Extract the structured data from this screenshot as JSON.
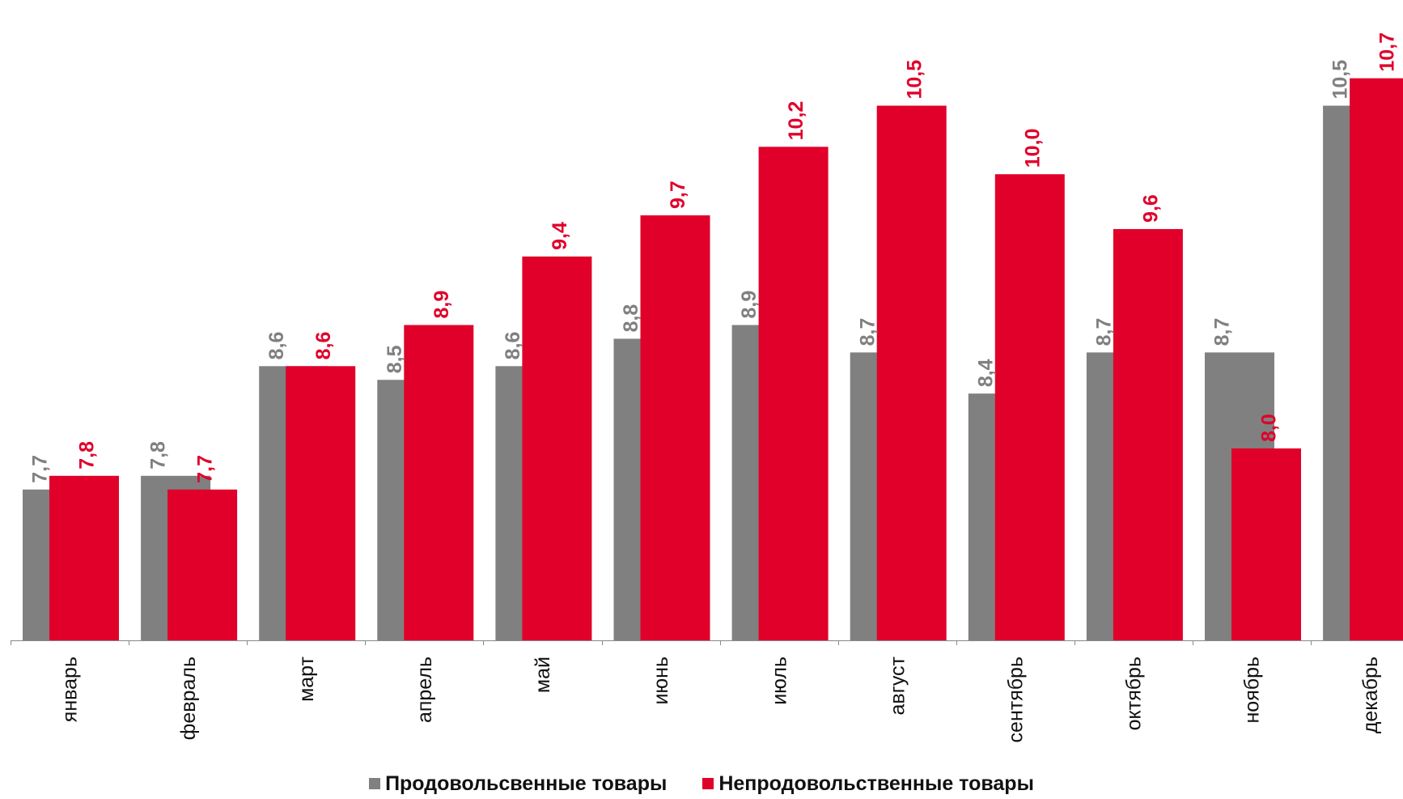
{
  "chart_data": {
    "type": "bar",
    "categories": [
      "январь",
      "февраль",
      "март",
      "апрель",
      "май",
      "июнь",
      "июль",
      "август",
      "сентябрь",
      "октябрь",
      "ноябрь",
      "декабрь"
    ],
    "series": [
      {
        "name": "Продовольсвенные товары",
        "color": "#808080",
        "label_color": "#808080",
        "values": [
          7.7,
          7.8,
          8.6,
          8.5,
          8.6,
          8.8,
          8.9,
          8.7,
          8.4,
          8.7,
          8.7,
          10.5
        ]
      },
      {
        "name": "Непродовольственные товары",
        "color": "#E0002A",
        "label_color": "#E0002A",
        "values": [
          7.8,
          7.7,
          8.6,
          8.9,
          9.4,
          9.7,
          10.2,
          10.5,
          10.0,
          9.6,
          8.0,
          10.7
        ]
      }
    ],
    "data_labels": [
      [
        "7,7",
        "7,8",
        "8,6",
        "8,5",
        "8,6",
        "8,8",
        "8,9",
        "8,7",
        "8,4",
        "8,7",
        "8,7",
        "10,5"
      ],
      [
        "7,8",
        "7,7",
        "8,6",
        "8,9",
        "9,4",
        "9,7",
        "10,2",
        "10,5",
        "10,0",
        "9,6",
        "8,0",
        "10,7"
      ]
    ],
    "ylim": [
      6.6,
      11.2
    ],
    "grid": false,
    "legend_position": "bottom"
  }
}
